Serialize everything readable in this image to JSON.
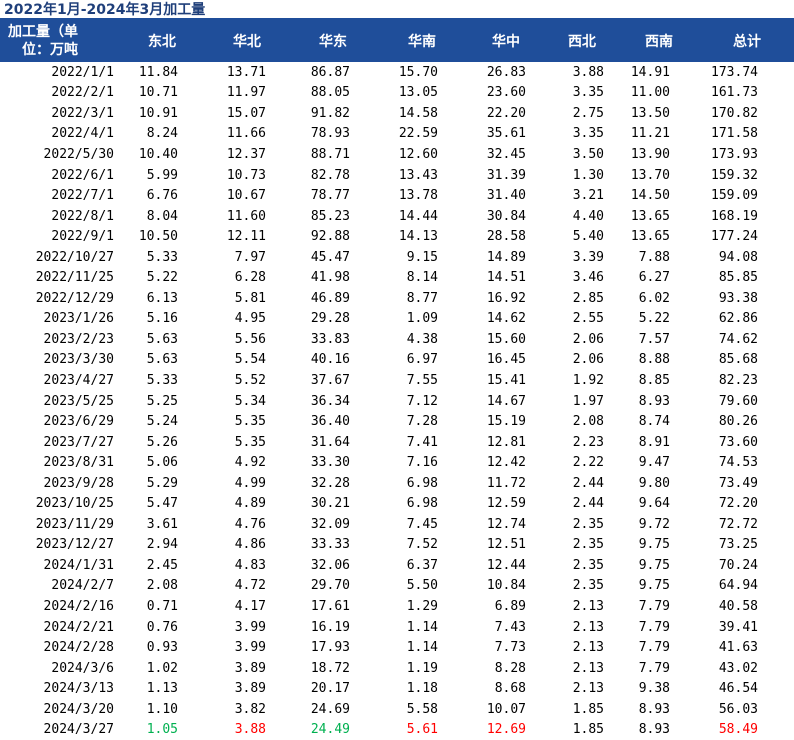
{
  "title": "2022年1月-2024年3月加工量",
  "header": {
    "first": "加工量（单位：万吨",
    "first_line1": "加工量（单",
    "first_line2": "位：万吨",
    "regions": [
      "东北",
      "华北",
      "华东",
      "华南",
      "华中",
      "西北",
      "西南",
      "总计"
    ]
  },
  "colors": {
    "header_bg": "#1f4e9a",
    "up": "#ff0000",
    "down": "#00b050"
  },
  "rows": [
    {
      "date": "2022/1/1",
      "v": [
        "11.84",
        "13.71",
        "86.87",
        "15.70",
        "26.83",
        "3.88",
        "14.91",
        "173.74"
      ]
    },
    {
      "date": "2022/2/1",
      "v": [
        "10.71",
        "11.97",
        "88.05",
        "13.05",
        "23.60",
        "3.35",
        "11.00",
        "161.73"
      ]
    },
    {
      "date": "2022/3/1",
      "v": [
        "10.91",
        "15.07",
        "91.82",
        "14.58",
        "22.20",
        "2.75",
        "13.50",
        "170.82"
      ]
    },
    {
      "date": "2022/4/1",
      "v": [
        "8.24",
        "11.66",
        "78.93",
        "22.59",
        "35.61",
        "3.35",
        "11.21",
        "171.58"
      ]
    },
    {
      "date": "2022/5/30",
      "v": [
        "10.40",
        "12.37",
        "88.71",
        "12.60",
        "32.45",
        "3.50",
        "13.90",
        "173.93"
      ]
    },
    {
      "date": "2022/6/1",
      "v": [
        "5.99",
        "10.73",
        "82.78",
        "13.43",
        "31.39",
        "1.30",
        "13.70",
        "159.32"
      ]
    },
    {
      "date": "2022/7/1",
      "v": [
        "6.76",
        "10.67",
        "78.77",
        "13.78",
        "31.40",
        "3.21",
        "14.50",
        "159.09"
      ]
    },
    {
      "date": "2022/8/1",
      "v": [
        "8.04",
        "11.60",
        "85.23",
        "14.44",
        "30.84",
        "4.40",
        "13.65",
        "168.19"
      ]
    },
    {
      "date": "2022/9/1",
      "v": [
        "10.50",
        "12.11",
        "92.88",
        "14.13",
        "28.58",
        "5.40",
        "13.65",
        "177.24"
      ]
    },
    {
      "date": "2022/10/27",
      "v": [
        "5.33",
        "7.97",
        "45.47",
        "9.15",
        "14.89",
        "3.39",
        "7.88",
        "94.08"
      ]
    },
    {
      "date": "2022/11/25",
      "v": [
        "5.22",
        "6.28",
        "41.98",
        "8.14",
        "14.51",
        "3.46",
        "6.27",
        "85.85"
      ]
    },
    {
      "date": "2022/12/29",
      "v": [
        "6.13",
        "5.81",
        "46.89",
        "8.77",
        "16.92",
        "2.85",
        "6.02",
        "93.38"
      ]
    },
    {
      "date": "2023/1/26",
      "v": [
        "5.16",
        "4.95",
        "29.28",
        "1.09",
        "14.62",
        "2.55",
        "5.22",
        "62.86"
      ]
    },
    {
      "date": "2023/2/23",
      "v": [
        "5.63",
        "5.56",
        "33.83",
        "4.38",
        "15.60",
        "2.06",
        "7.57",
        "74.62"
      ]
    },
    {
      "date": "2023/3/30",
      "v": [
        "5.63",
        "5.54",
        "40.16",
        "6.97",
        "16.45",
        "2.06",
        "8.88",
        "85.68"
      ]
    },
    {
      "date": "2023/4/27",
      "v": [
        "5.33",
        "5.52",
        "37.67",
        "7.55",
        "15.41",
        "1.92",
        "8.85",
        "82.23"
      ]
    },
    {
      "date": "2023/5/25",
      "v": [
        "5.25",
        "5.34",
        "36.34",
        "7.12",
        "14.67",
        "1.97",
        "8.93",
        "79.60"
      ]
    },
    {
      "date": "2023/6/29",
      "v": [
        "5.24",
        "5.35",
        "36.40",
        "7.28",
        "15.19",
        "2.08",
        "8.74",
        "80.26"
      ]
    },
    {
      "date": "2023/7/27",
      "v": [
        "5.26",
        "5.35",
        "31.64",
        "7.41",
        "12.81",
        "2.23",
        "8.91",
        "73.60"
      ]
    },
    {
      "date": "2023/8/31",
      "v": [
        "5.06",
        "4.92",
        "33.30",
        "7.16",
        "12.42",
        "2.22",
        "9.47",
        "74.53"
      ]
    },
    {
      "date": "2023/9/28",
      "v": [
        "5.29",
        "4.99",
        "32.28",
        "6.98",
        "11.72",
        "2.44",
        "9.80",
        "73.49"
      ]
    },
    {
      "date": "2023/10/25",
      "v": [
        "5.47",
        "4.89",
        "30.21",
        "6.98",
        "12.59",
        "2.44",
        "9.64",
        "72.20"
      ]
    },
    {
      "date": "2023/11/29",
      "v": [
        "3.61",
        "4.76",
        "32.09",
        "7.45",
        "12.74",
        "2.35",
        "9.72",
        "72.72"
      ]
    },
    {
      "date": "2023/12/27",
      "v": [
        "2.94",
        "4.86",
        "33.33",
        "7.52",
        "12.51",
        "2.35",
        "9.75",
        "73.25"
      ]
    },
    {
      "date": "2024/1/31",
      "v": [
        "2.45",
        "4.83",
        "32.06",
        "6.37",
        "12.44",
        "2.35",
        "9.75",
        "70.24"
      ]
    },
    {
      "date": "2024/2/7",
      "v": [
        "2.08",
        "4.72",
        "29.70",
        "5.50",
        "10.84",
        "2.35",
        "9.75",
        "64.94"
      ]
    },
    {
      "date": "2024/2/16",
      "v": [
        "0.71",
        "4.17",
        "17.61",
        "1.29",
        "6.89",
        "2.13",
        "7.79",
        "40.58"
      ]
    },
    {
      "date": "2024/2/21",
      "v": [
        "0.76",
        "3.99",
        "16.19",
        "1.14",
        "7.43",
        "2.13",
        "7.79",
        "39.41"
      ]
    },
    {
      "date": "2024/2/28",
      "v": [
        "0.93",
        "3.99",
        "17.93",
        "1.14",
        "7.73",
        "2.13",
        "7.79",
        "41.63"
      ]
    },
    {
      "date": "2024/3/6",
      "v": [
        "1.02",
        "3.89",
        "18.72",
        "1.19",
        "8.28",
        "2.13",
        "7.79",
        "43.02"
      ]
    },
    {
      "date": "2024/3/13",
      "v": [
        "1.13",
        "3.89",
        "20.17",
        "1.18",
        "8.68",
        "2.13",
        "9.38",
        "46.54"
      ]
    },
    {
      "date": "2024/3/20",
      "v": [
        "1.10",
        "3.82",
        "24.69",
        "5.58",
        "10.07",
        "1.85",
        "8.93",
        "56.03"
      ]
    },
    {
      "date": "2024/3/27",
      "v": [
        "1.05",
        "3.88",
        "24.49",
        "5.61",
        "12.69",
        "1.85",
        "8.93",
        "58.49"
      ],
      "c": [
        "down",
        "up",
        "down",
        "up",
        "up",
        "",
        "",
        "up"
      ]
    }
  ]
}
